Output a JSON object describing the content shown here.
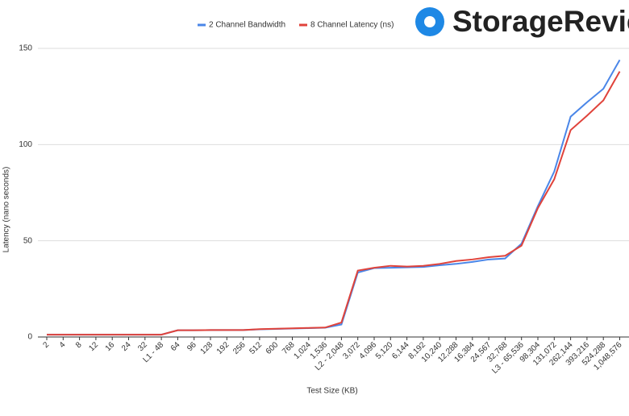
{
  "chart_data": {
    "type": "line",
    "logo": "StorageReview",
    "x_label": "Test Size (KB)",
    "y_label": "Latency (nano seconds)",
    "categories": [
      "2",
      "4",
      "8",
      "12",
      "16",
      "24",
      "32",
      "L1 - 48",
      "64",
      "96",
      "128",
      "192",
      "256",
      "512",
      "600",
      "768",
      "1,024",
      "1,536",
      "L2 - 2,048",
      "3,072",
      "4,096",
      "5,120",
      "6,144",
      "8,192",
      "10,240",
      "12,288",
      "16,384",
      "24,567",
      "32,768",
      "L3 - 65,536",
      "98,304",
      "131,072",
      "262,144",
      "393,216",
      "524,288",
      "1,048,576"
    ],
    "series": [
      {
        "name": "2 Channel Bandwidth",
        "color": "#4a86e8",
        "values": [
          1.2,
          1.2,
          1.2,
          1.2,
          1.2,
          1.2,
          1.2,
          1.2,
          3.5,
          3.5,
          3.6,
          3.6,
          3.6,
          4.0,
          4.2,
          4.4,
          4.6,
          4.8,
          6.5,
          33.5,
          35.8,
          36,
          36.2,
          36.4,
          37.3,
          38,
          39,
          40.3,
          40.8,
          48.5,
          68,
          86,
          114.5,
          122,
          129,
          144
        ]
      },
      {
        "name": "8 Channel Latency (ns)",
        "color": "#e0433b",
        "values": [
          1.2,
          1.2,
          1.2,
          1.2,
          1.2,
          1.2,
          1.2,
          1.2,
          3.5,
          3.5,
          3.6,
          3.6,
          3.6,
          4.1,
          4.3,
          4.5,
          4.7,
          4.9,
          7.5,
          34.5,
          36,
          37,
          36.6,
          37,
          38,
          39.5,
          40.3,
          41.5,
          42.2,
          47.5,
          67,
          82,
          107.5,
          115,
          123,
          138
        ]
      }
    ],
    "ylim": [
      0,
      150
    ],
    "yticks": [
      0,
      50,
      100,
      150
    ],
    "grid": true
  }
}
